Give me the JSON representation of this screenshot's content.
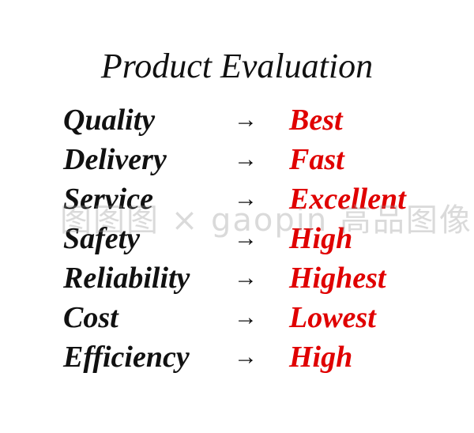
{
  "title": "Product Evaluation",
  "arrow": "→",
  "rows": [
    {
      "label": "Quality",
      "value": "Best"
    },
    {
      "label": "Delivery",
      "value": "Fast"
    },
    {
      "label": "Service",
      "value": "Excellent"
    },
    {
      "label": "Safety",
      "value": "High"
    },
    {
      "label": "Reliability",
      "value": "Highest"
    },
    {
      "label": "Cost",
      "value": "Lowest"
    },
    {
      "label": "Efficiency",
      "value": "High"
    }
  ],
  "watermark": "图图图 × gaopin 高品图像",
  "colors": {
    "text": "#111111",
    "value": "#e00000"
  }
}
